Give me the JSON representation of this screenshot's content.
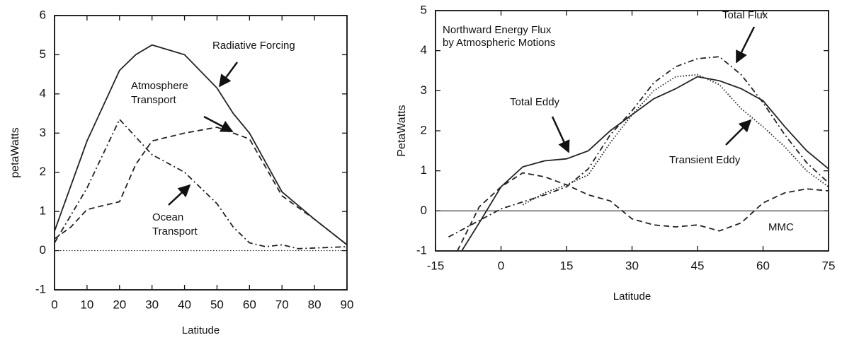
{
  "chart_data": [
    {
      "type": "line",
      "x_label": "Latitude",
      "y_label": "petaWatts",
      "xlim": [
        0,
        90
      ],
      "xticks": [
        0,
        10,
        20,
        30,
        40,
        50,
        60,
        70,
        80,
        90
      ],
      "ylim": [
        -1,
        6
      ],
      "yticks": [
        -1,
        0,
        1,
        2,
        3,
        4,
        5,
        6
      ],
      "zero_line": "dotted",
      "series": [
        {
          "name": "Radiative Forcing",
          "color": "#222",
          "dash": "solid",
          "x": [
            0,
            10,
            20,
            25,
            30,
            40,
            50,
            55,
            60,
            70,
            80,
            90
          ],
          "values": [
            0.5,
            2.8,
            4.6,
            5.0,
            5.25,
            5.0,
            4.15,
            3.5,
            3.0,
            1.5,
            0.8,
            0.15
          ]
        },
        {
          "name": "Atmosphere Transport",
          "color": "#222",
          "dash": "dashed",
          "x": [
            0,
            5,
            10,
            20,
            25,
            30,
            40,
            50,
            60,
            70,
            80,
            90
          ],
          "values": [
            0.3,
            0.6,
            1.05,
            1.25,
            2.2,
            2.8,
            3.0,
            3.15,
            2.85,
            1.4,
            0.8,
            0.15
          ]
        },
        {
          "name": "Ocean Transport",
          "color": "#222",
          "dash": "dashdot",
          "x": [
            0,
            10,
            20,
            30,
            40,
            50,
            55,
            60,
            65,
            70,
            75,
            90
          ],
          "values": [
            0.2,
            1.6,
            3.35,
            2.45,
            2.0,
            1.2,
            0.6,
            0.2,
            0.1,
            0.15,
            0.05,
            0.1
          ]
        }
      ]
    },
    {
      "type": "line",
      "title": "Northward Energy Flux by Atmospheric Motions",
      "x_label": "Latitude",
      "y_label": "PetaWatts",
      "xlim": [
        -15,
        75
      ],
      "xticks": [
        -15,
        0,
        15,
        30,
        45,
        60,
        75
      ],
      "ylim": [
        -1,
        5
      ],
      "yticks": [
        -1,
        0,
        1,
        2,
        3,
        4,
        5
      ],
      "zero_line": "solid",
      "series": [
        {
          "name": "Total Flux",
          "color": "#222",
          "dash": "solid",
          "x": [
            -9,
            -5,
            0,
            5,
            10,
            15,
            20,
            25,
            30,
            35,
            40,
            45,
            50,
            55,
            60,
            65,
            70,
            75
          ],
          "values": [
            -1,
            -0.3,
            0.6,
            1.1,
            1.25,
            1.3,
            1.5,
            2.0,
            2.4,
            2.8,
            3.05,
            3.35,
            3.25,
            3.05,
            2.75,
            2.1,
            1.5,
            1.05
          ]
        },
        {
          "name": "Total Eddy",
          "color": "#222",
          "dash": "dashdot",
          "x": [
            -12,
            0,
            10,
            15,
            20,
            25,
            30,
            35,
            40,
            45,
            50,
            55,
            60,
            65,
            70,
            75
          ],
          "values": [
            -0.65,
            0.05,
            0.4,
            0.6,
            1.05,
            1.9,
            2.5,
            3.2,
            3.6,
            3.8,
            3.85,
            3.4,
            2.7,
            1.9,
            1.2,
            0.7
          ]
        },
        {
          "name": "Transient Eddy",
          "color": "#222",
          "dash": "dotted",
          "x": [
            5,
            10,
            15,
            20,
            25,
            30,
            35,
            40,
            45,
            50,
            55,
            60,
            65,
            70,
            75
          ],
          "values": [
            0.15,
            0.45,
            0.65,
            0.9,
            1.7,
            2.4,
            3.0,
            3.35,
            3.4,
            3.15,
            2.55,
            2.1,
            1.6,
            1.0,
            0.6
          ]
        },
        {
          "name": "MMC",
          "color": "#222",
          "dash": "dashed",
          "x": [
            -10,
            -5,
            0,
            5,
            10,
            15,
            20,
            25,
            30,
            35,
            40,
            45,
            50,
            55,
            60,
            65,
            70,
            75
          ],
          "values": [
            -1,
            0.1,
            0.6,
            0.95,
            0.85,
            0.65,
            0.4,
            0.25,
            -0.2,
            -0.35,
            -0.4,
            -0.35,
            -0.5,
            -0.3,
            0.2,
            0.45,
            0.55,
            0.5
          ]
        }
      ]
    }
  ]
}
